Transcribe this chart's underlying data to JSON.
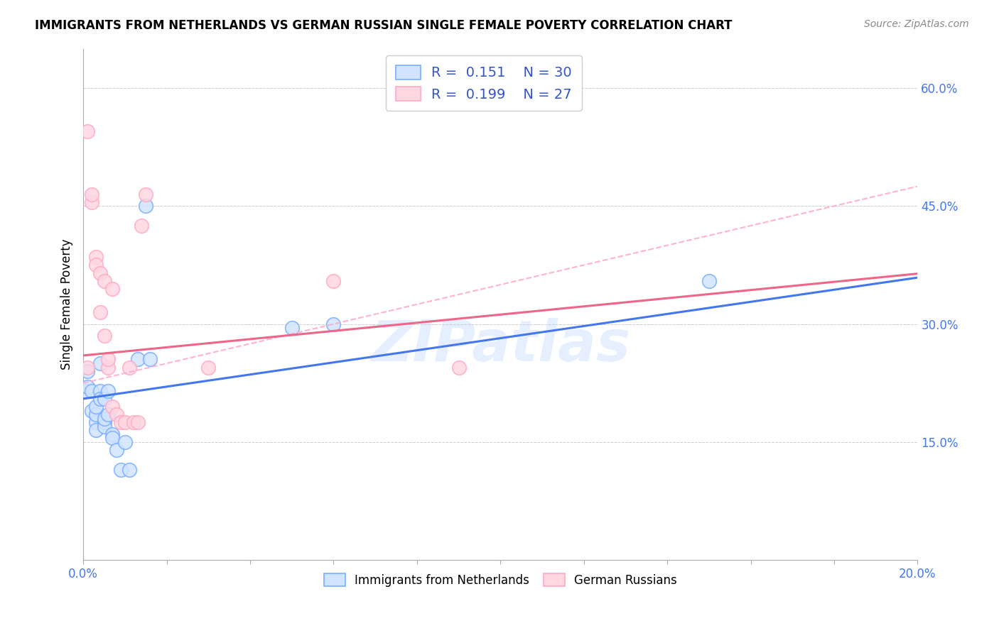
{
  "title": "IMMIGRANTS FROM NETHERLANDS VS GERMAN RUSSIAN SINGLE FEMALE POVERTY CORRELATION CHART",
  "source": "Source: ZipAtlas.com",
  "ylabel": "Single Female Poverty",
  "xlim": [
    0.0,
    0.2
  ],
  "ylim": [
    0.0,
    0.65
  ],
  "ytick_vals": [
    0.15,
    0.3,
    0.45,
    0.6
  ],
  "xtick_vals": [
    0.0,
    0.02,
    0.04,
    0.06,
    0.08,
    0.1,
    0.12,
    0.14,
    0.16,
    0.18,
    0.2
  ],
  "blue_color": "#7aadff",
  "pink_color": "#ffaac0",
  "blue_fill_color": "#d0e4ff",
  "pink_fill_color": "#ffd6e2",
  "blue_line_color": "#4477ee",
  "pink_line_color": "#ee6688",
  "pink_dash_color": "#ffaacc",
  "tick_color": "#4477ee",
  "watermark": "ZIPatlas",
  "blue_x": [
    0.0005,
    0.001,
    0.001,
    0.002,
    0.002,
    0.003,
    0.003,
    0.003,
    0.003,
    0.004,
    0.004,
    0.004,
    0.005,
    0.005,
    0.005,
    0.005,
    0.006,
    0.006,
    0.007,
    0.007,
    0.008,
    0.009,
    0.01,
    0.011,
    0.013,
    0.015,
    0.016,
    0.05,
    0.06,
    0.15
  ],
  "blue_y": [
    0.215,
    0.22,
    0.24,
    0.19,
    0.215,
    0.175,
    0.165,
    0.185,
    0.195,
    0.215,
    0.205,
    0.25,
    0.175,
    0.17,
    0.205,
    0.18,
    0.185,
    0.215,
    0.16,
    0.155,
    0.14,
    0.115,
    0.15,
    0.115,
    0.255,
    0.45,
    0.255,
    0.295,
    0.3,
    0.355
  ],
  "pink_x": [
    0.001,
    0.001,
    0.002,
    0.002,
    0.003,
    0.003,
    0.004,
    0.004,
    0.005,
    0.005,
    0.006,
    0.006,
    0.007,
    0.007,
    0.008,
    0.009,
    0.01,
    0.011,
    0.012,
    0.013,
    0.014,
    0.015,
    0.03,
    0.06,
    0.09
  ],
  "pink_y": [
    0.545,
    0.245,
    0.455,
    0.465,
    0.385,
    0.375,
    0.365,
    0.315,
    0.355,
    0.285,
    0.245,
    0.255,
    0.345,
    0.195,
    0.185,
    0.175,
    0.175,
    0.245,
    0.175,
    0.175,
    0.425,
    0.465,
    0.245,
    0.355,
    0.245
  ],
  "blue_intercept": 0.205,
  "blue_slope": 0.77,
  "pink_intercept": 0.26,
  "pink_slope": 0.52,
  "pink_dash_intercept": 0.225,
  "pink_dash_slope": 1.25
}
